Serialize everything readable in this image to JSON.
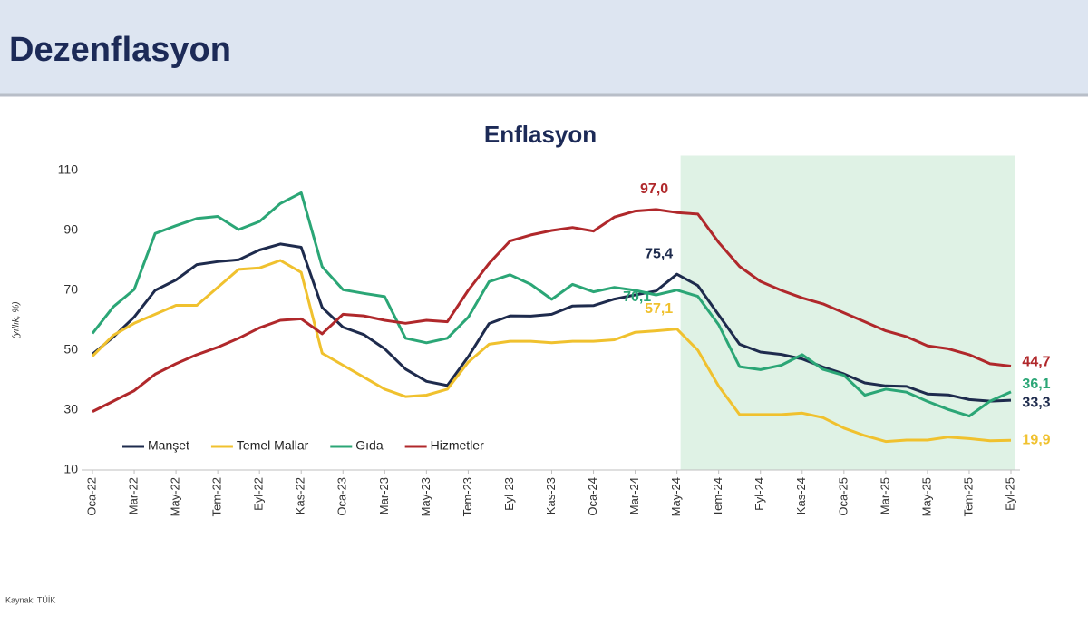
{
  "header": {
    "title": "Dezenflasyon"
  },
  "source": "Kaynak: TÜİK",
  "chart_data": {
    "type": "line",
    "title": "Enflasyon",
    "y_label": "(yıllık, %)",
    "categories": [
      "Oca-22",
      null,
      "Mar-22",
      null,
      "May-22",
      null,
      "Tem-22",
      null,
      "Eyl-22",
      null,
      "Kas-22",
      null,
      "Oca-23",
      null,
      "Mar-23",
      null,
      "May-23",
      null,
      "Tem-23",
      null,
      "Eyl-23",
      null,
      "Kas-23",
      null,
      "Oca-24",
      null,
      "Mar-24",
      null,
      "May-24",
      null,
      "Tem-24",
      null,
      "Eyl-24",
      null,
      "Kas-24",
      null,
      "Oca-25",
      null,
      "Mar-25",
      null,
      "May-25",
      null,
      "Tem-25",
      null,
      "Eyl-25"
    ],
    "ylim": [
      10,
      115
    ],
    "yticks": [
      10,
      30,
      50,
      70,
      90,
      110
    ],
    "grid": false,
    "legend": "bottom-left",
    "shade": {
      "from": 28,
      "to": 44,
      "color": "#dff2e5"
    },
    "series": [
      {
        "name": "Manşet",
        "color": "#1e2b4d",
        "values": [
          48.7,
          54.4,
          61.1,
          70.0,
          73.5,
          78.6,
          79.6,
          80.2,
          83.5,
          85.5,
          84.4,
          64.3,
          57.7,
          55.2,
          50.5,
          43.7,
          39.6,
          38.2,
          47.8,
          58.9,
          61.5,
          61.4,
          62.0,
          64.8,
          64.9,
          67.1,
          68.5,
          69.8,
          75.4,
          71.6,
          61.8,
          52.0,
          49.4,
          48.6,
          47.1,
          44.4,
          42.1,
          39.1,
          38.1,
          37.9,
          35.4,
          35.1,
          33.5,
          33.0,
          33.3
        ],
        "value_labels": [
          null,
          null,
          null,
          null,
          null,
          null,
          null,
          null,
          null,
          null,
          null,
          null,
          null,
          null,
          null,
          null,
          null,
          null,
          null,
          null,
          null,
          null,
          null,
          null,
          null,
          null,
          null,
          null,
          "75,4",
          null,
          null,
          null,
          null,
          null,
          null,
          null,
          null,
          null,
          null,
          null,
          null,
          null,
          null,
          null,
          "33,3"
        ]
      },
      {
        "name": "Temel Mallar",
        "color": "#f0c12e",
        "values": [
          48.0,
          55.0,
          59.0,
          62.0,
          65.0,
          65.0,
          71.0,
          77.0,
          77.5,
          80.0,
          76.0,
          49.0,
          45.0,
          41.0,
          37.0,
          34.5,
          35.0,
          37.0,
          46.0,
          52.0,
          53.0,
          53.0,
          52.5,
          53.0,
          53.0,
          53.5,
          56.0,
          56.5,
          57.1,
          50.0,
          38.0,
          28.5,
          28.5,
          28.5,
          29.0,
          27.5,
          24.0,
          21.5,
          19.5,
          20.0,
          20.0,
          21.0,
          20.5,
          19.8,
          19.9
        ],
        "value_labels": [
          null,
          null,
          null,
          null,
          null,
          null,
          null,
          null,
          null,
          null,
          null,
          null,
          null,
          null,
          null,
          null,
          null,
          null,
          null,
          null,
          null,
          null,
          null,
          null,
          null,
          null,
          null,
          null,
          "57,1",
          null,
          null,
          null,
          null,
          null,
          null,
          null,
          null,
          null,
          null,
          null,
          null,
          null,
          null,
          null,
          "19,9"
        ]
      },
      {
        "name": "Gıda",
        "color": "#2ba676",
        "values": [
          55.6,
          64.5,
          70.3,
          89.0,
          91.6,
          94.0,
          94.7,
          90.3,
          93.0,
          99.0,
          102.6,
          77.9,
          70.2,
          69.0,
          67.9,
          54.0,
          52.5,
          54.0,
          61.0,
          72.9,
          75.2,
          72.0,
          67.0,
          72.0,
          69.5,
          71.0,
          70.0,
          68.5,
          70.1,
          68.0,
          58.5,
          44.5,
          43.5,
          45.0,
          48.5,
          43.6,
          41.6,
          35.0,
          37.0,
          36.0,
          32.9,
          30.2,
          28.0,
          33.0,
          36.1
        ],
        "value_labels": [
          null,
          null,
          null,
          null,
          null,
          null,
          null,
          null,
          null,
          null,
          null,
          null,
          null,
          null,
          null,
          null,
          null,
          null,
          null,
          null,
          null,
          null,
          null,
          null,
          null,
          null,
          null,
          null,
          "70,1",
          null,
          null,
          null,
          null,
          null,
          null,
          null,
          null,
          null,
          null,
          null,
          null,
          null,
          null,
          null,
          "36,1"
        ]
      },
      {
        "name": "Hizmetler",
        "color": "#b0282b",
        "values": [
          29.5,
          33.0,
          36.5,
          42.0,
          45.5,
          48.5,
          51.0,
          54.0,
          57.5,
          60.0,
          60.5,
          55.5,
          62.0,
          61.5,
          60.0,
          59.0,
          60.0,
          59.5,
          70.0,
          79.0,
          86.5,
          88.5,
          90.0,
          91.0,
          89.8,
          94.5,
          96.5,
          97.0,
          96.0,
          95.5,
          86.0,
          78.0,
          73.0,
          70.0,
          67.5,
          65.5,
          62.5,
          59.5,
          56.5,
          54.5,
          51.5,
          50.5,
          48.5,
          45.5,
          44.7
        ],
        "value_labels": [
          null,
          null,
          null,
          null,
          null,
          null,
          null,
          null,
          null,
          null,
          null,
          null,
          null,
          null,
          null,
          null,
          null,
          null,
          null,
          null,
          null,
          null,
          null,
          null,
          null,
          null,
          null,
          "97,0",
          null,
          null,
          null,
          null,
          null,
          null,
          null,
          null,
          null,
          null,
          null,
          null,
          null,
          null,
          null,
          null,
          "44,7"
        ]
      }
    ]
  }
}
